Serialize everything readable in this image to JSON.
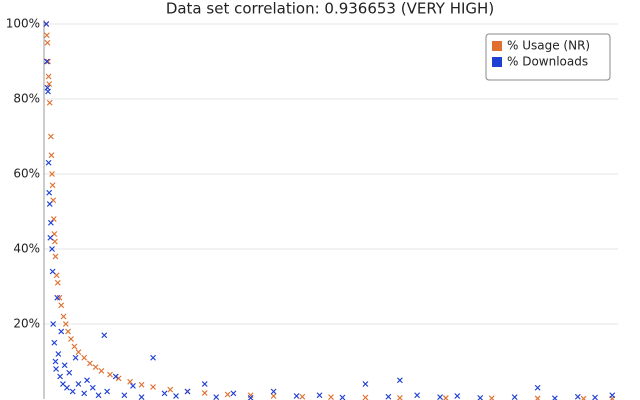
{
  "chart_data": {
    "type": "scatter",
    "title": "Data set correlation: 0.936653 (VERY HIGH)",
    "xlim": [
      0,
      100
    ],
    "ylim": [
      0,
      100
    ],
    "yticks": [
      {
        "value": 20,
        "label": "20%"
      },
      {
        "value": 40,
        "label": "40%"
      },
      {
        "value": 60,
        "label": "60%"
      },
      {
        "value": 80,
        "label": "80%"
      },
      {
        "value": 100,
        "label": "100%"
      }
    ],
    "grid": true,
    "legend": "upper right",
    "series": [
      {
        "name": "% Usage (NR)",
        "color": "#e0702f",
        "x": [
          0.4,
          0.5,
          0.6,
          0.7,
          0.8,
          0.9,
          1.0,
          1.2,
          1.3,
          1.4,
          1.5,
          1.6,
          1.7,
          1.8,
          1.9,
          2.0,
          2.2,
          2.4,
          2.7,
          3.0,
          3.4,
          3.8,
          4.2,
          4.7,
          5.3,
          6,
          7,
          8,
          9,
          10,
          11.5,
          13,
          15,
          17,
          19,
          22,
          25,
          28,
          32,
          36,
          40,
          45,
          50,
          56,
          62,
          70,
          78,
          86,
          94,
          99
        ],
        "values": [
          100,
          97,
          95,
          90,
          86,
          84,
          79,
          70,
          65,
          60,
          57,
          53,
          48,
          44,
          42,
          38,
          33,
          31,
          27,
          25,
          22,
          20,
          18,
          16,
          14,
          12.5,
          11,
          9.5,
          8.5,
          7.5,
          6.5,
          5.5,
          4.6,
          3.8,
          3.2,
          2.5,
          2,
          1.6,
          1.2,
          1,
          0.8,
          0.6,
          0.5,
          0.4,
          0.3,
          0.25,
          0.2,
          0.15,
          0.1,
          0.1
        ]
      },
      {
        "name": "% Downloads",
        "color": "#1e3fd4",
        "x": [
          0.4,
          0.5,
          0.6,
          0.7,
          0.8,
          0.9,
          1.0,
          1.1,
          1.2,
          1.4,
          1.5,
          1.6,
          1.8,
          2.0,
          2.1,
          2.3,
          2.5,
          2.8,
          3.0,
          3.3,
          3.6,
          4.0,
          4.4,
          5,
          5.5,
          6,
          7,
          7.5,
          8.5,
          9.5,
          10.5,
          11,
          12.5,
          14,
          15.5,
          17,
          19,
          21,
          23,
          25,
          28,
          30,
          33,
          36,
          40,
          44,
          48,
          52,
          56,
          60,
          62,
          65,
          69,
          72,
          76,
          82,
          86,
          89,
          93,
          96,
          99
        ],
        "values": [
          100,
          90,
          83,
          82,
          63,
          55,
          52,
          43,
          47,
          40,
          34,
          20,
          15,
          10,
          8,
          27,
          12,
          6,
          18,
          4,
          9,
          3,
          7,
          2,
          11,
          4,
          1.5,
          5,
          3,
          1,
          17,
          2,
          6,
          1,
          3.5,
          0.5,
          11,
          1.5,
          0.8,
          2,
          4,
          0.5,
          1.5,
          0.3,
          2,
          0.8,
          1,
          0.4,
          4,
          0.6,
          5,
          1,
          0.5,
          0.8,
          0.3,
          0.5,
          3,
          0.2,
          0.6,
          0.4,
          1
        ]
      }
    ]
  }
}
